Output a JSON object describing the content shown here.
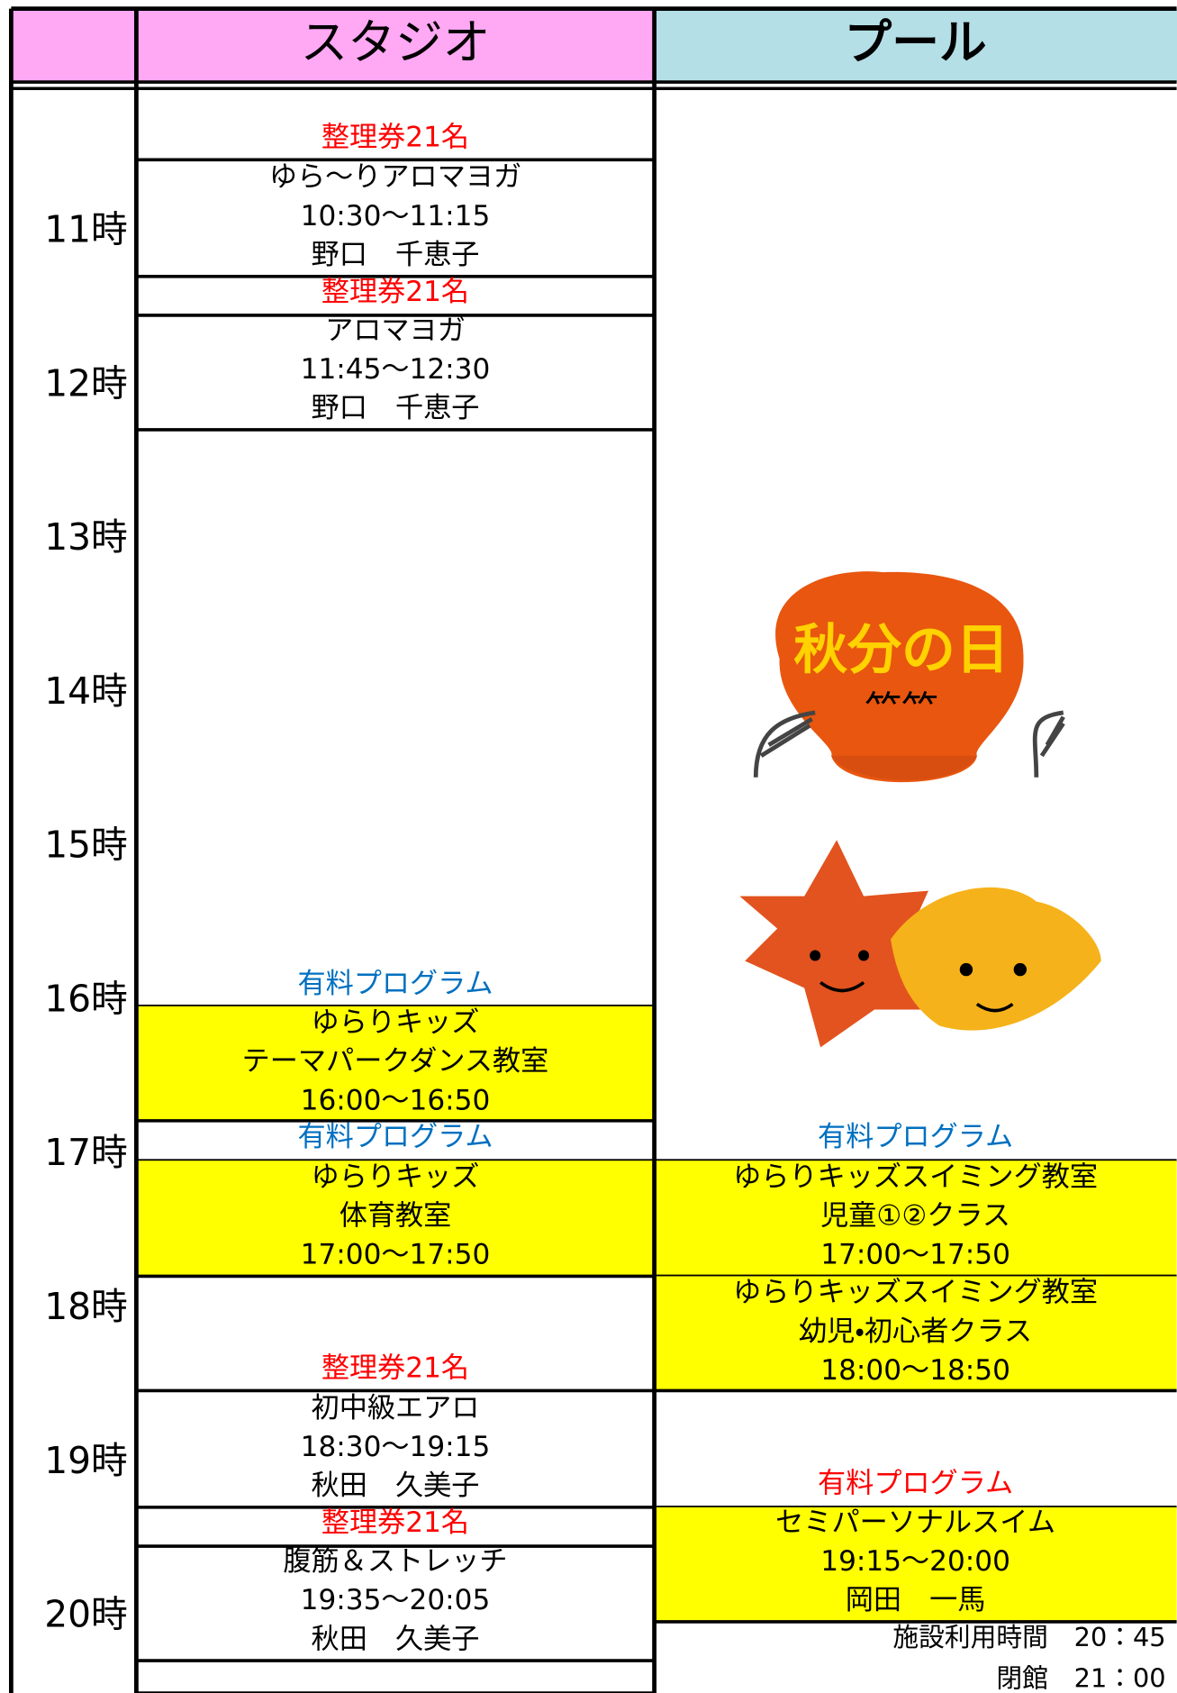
{
  "header": {
    "cells": [
      "スタジオ",
      "プール"
    ]
  },
  "times": [
    "11時",
    "12時",
    "13時",
    "14時",
    "15時",
    "16時",
    "17時",
    "18時",
    "19時",
    "20時"
  ],
  "studio": [
    {
      "lines": [
        "整理券21名"
      ],
      "color": "#ff0000"
    },
    {
      "lines": [
        "ゆら～りアロマヨガ",
        "10:30～11:15",
        "野口　千恵子"
      ]
    },
    {
      "lines": [
        "整理券21名"
      ],
      "color": "#ff0000"
    },
    {
      "lines": [
        "アロマヨガ",
        "11:45～12:30",
        "野口　千恵子"
      ]
    },
    {
      "lines": [
        "有料プログラム"
      ],
      "color": "#0070c0"
    },
    {
      "lines": [
        "ゆらりキッズ",
        "テーマパークダンス教室",
        "16:00～16:50"
      ],
      "fill": "#ffff00"
    },
    {
      "lines": [
        "有料プログラム"
      ],
      "color": "#0070c0"
    },
    {
      "lines": [
        "ゆらりキッズ",
        "体育教室",
        "17:00～17:50"
      ],
      "fill": "#ffff00"
    },
    {
      "lines": [
        "整理券21名"
      ],
      "color": "#ff0000"
    },
    {
      "lines": [
        "初中級エアロ",
        "18:30～19:15",
        "秋田　久美子"
      ]
    },
    {
      "lines": [
        "整理券21名"
      ],
      "color": "#ff0000"
    },
    {
      "lines": [
        "腹筋＆ストレッチ",
        "19:35～20:05",
        "秋田　久美子"
      ]
    },
    {
      "lines": []
    }
  ],
  "pool": [
    {
      "lines": [
        "有料プログラム"
      ],
      "color": "#0070c0"
    },
    {
      "lines": [
        "ゆらりキッズスイミング教室",
        "児童①②クラス",
        "17:00～17:50"
      ],
      "fill": "#ffff00"
    },
    {
      "lines": [
        "ゆらりキッズスイミング教室",
        "幼児・初心者クラス",
        "18:00～18:50"
      ],
      "fill": "#ffff00"
    },
    {
      "lines": [
        "有料プログラム"
      ],
      "color": "#ff0000"
    },
    {
      "lines": [
        "セミパーソナルスイム",
        "19:15～20:00",
        "岡田　一馬"
      ],
      "fill": "#ffff00"
    }
  ],
  "footer": [
    "施設利用時間　20：45",
    "閉館　21：00"
  ],
  "illustration": {
    "label": "秋分の日"
  }
}
